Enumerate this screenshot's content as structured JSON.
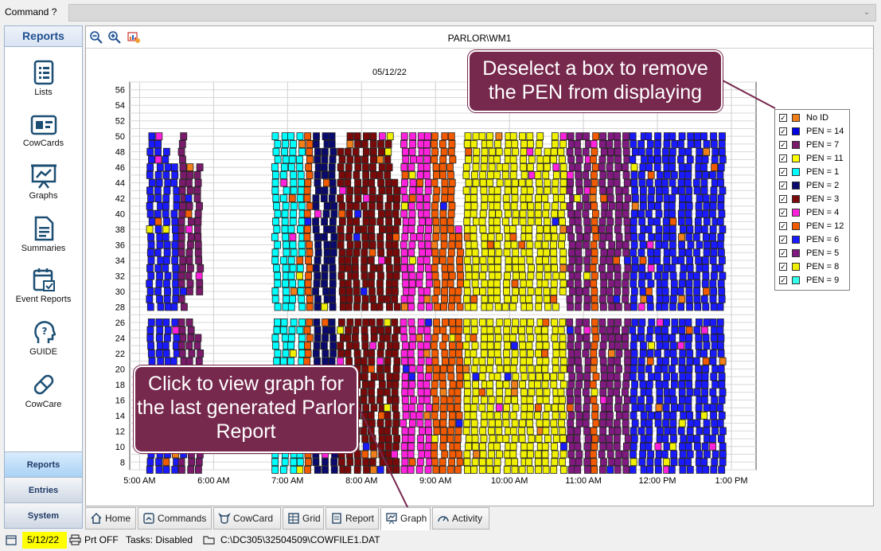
{
  "command_bar": {
    "label": "Command ?",
    "value": ""
  },
  "sidebar": {
    "title": "Reports",
    "items": [
      {
        "label": "Lists",
        "icon": "list-icon"
      },
      {
        "label": "CowCards",
        "icon": "id-card-icon"
      },
      {
        "label": "Graphs",
        "icon": "presentation-chart-icon"
      },
      {
        "label": "Summaries",
        "icon": "document-icon"
      },
      {
        "label": "Event Reports",
        "icon": "calendar-check-icon"
      },
      {
        "label": "GUIDE",
        "icon": "head-question-icon"
      },
      {
        "label": "CowCare",
        "icon": "pill-icon"
      }
    ],
    "bottom_tabs": [
      "Reports",
      "Entries",
      "System"
    ],
    "active_bottom_tab": "Reports"
  },
  "toolbar": {
    "title": "PARLOR\\WM1",
    "icons": [
      "zoom-out-icon",
      "zoom-in-icon",
      "chart-settings-icon"
    ]
  },
  "chart_data": {
    "type": "scatter",
    "title": "05/12/22",
    "x_tick_labels": [
      "5:00 AM",
      "6:00 AM",
      "7:00 AM",
      "8:00 AM",
      "9:00 AM",
      "10:00 AM",
      "11:00 AM",
      "12:00 PM",
      "1:00 PM"
    ],
    "y_tick_labels": [
      8,
      10,
      12,
      14,
      16,
      18,
      20,
      22,
      24,
      26,
      28,
      30,
      32,
      34,
      36,
      38,
      40,
      42,
      44,
      46,
      48,
      50,
      52,
      54,
      56
    ],
    "xlim": [
      "4:52 AM",
      "1:20 PM"
    ],
    "ylim": [
      7,
      57
    ],
    "grid": true,
    "legend_position": "right",
    "x_axis_note": "each column of markers is one milking turn; markers stack from stall 28 to 50 (upper side) and stall 7 to 26 (lower side)",
    "columns": [
      {
        "time": "5:09 AM",
        "pen": "PEN = 6",
        "upper": [
          28,
          50
        ],
        "lower": [
          7,
          26
        ]
      },
      {
        "time": "5:16 AM",
        "pen": "PEN = 6",
        "upper": [
          28,
          50
        ],
        "lower": [
          7,
          26
        ]
      },
      {
        "time": "5:22 AM",
        "pen": "PEN = 6",
        "upper": [
          28,
          48
        ],
        "lower": [
          7,
          26
        ]
      },
      {
        "time": "5:29 AM",
        "pen": "PEN = 6",
        "upper": [
          28,
          46
        ],
        "lower": [
          7,
          26
        ]
      },
      {
        "time": "5:35 AM",
        "pen": "PEN = 7",
        "upper": [
          28,
          50
        ],
        "lower": [
          7,
          26
        ]
      },
      {
        "time": "5:41 AM",
        "pen": "PEN = 7",
        "upper": [
          30,
          46
        ],
        "lower": [
          7,
          26
        ]
      },
      {
        "time": "5:48 AM",
        "pen": "PEN = 7",
        "upper": [
          30,
          46
        ],
        "lower": [
          7,
          24
        ]
      },
      {
        "time": "6:51 AM",
        "pen": "PEN = 1",
        "upper": [
          28,
          50
        ],
        "lower": [
          7,
          26
        ]
      },
      {
        "time": "6:58 AM",
        "pen": "PEN = 1",
        "upper": [
          28,
          50
        ],
        "lower": [
          7,
          26
        ]
      },
      {
        "time": "7:04 AM",
        "pen": "PEN = 1",
        "upper": [
          28,
          50
        ],
        "lower": [
          7,
          26
        ]
      },
      {
        "time": "7:11 AM",
        "pen": "PEN = 1",
        "upper": [
          28,
          50
        ],
        "lower": [
          7,
          26
        ]
      },
      {
        "time": "7:17 AM",
        "pen": "PEN = 12",
        "upper": [
          28,
          50
        ],
        "lower": [
          7,
          26
        ]
      },
      {
        "time": "7:24 AM",
        "pen": "PEN = 2",
        "upper": [
          28,
          50
        ],
        "lower": [
          7,
          26
        ]
      },
      {
        "time": "7:31 AM",
        "pen": "PEN = 2",
        "upper": [
          28,
          50
        ],
        "lower": [
          7,
          26
        ]
      },
      {
        "time": "7:37 AM",
        "pen": "PEN = 2",
        "upper": [
          28,
          50
        ],
        "lower": [
          7,
          26
        ]
      },
      {
        "time": "7:44 AM",
        "pen": "PEN = 3",
        "upper": [
          28,
          48
        ],
        "lower": [
          7,
          26
        ]
      },
      {
        "time": "7:50 AM",
        "pen": "PEN = 3",
        "upper": [
          28,
          50
        ],
        "lower": [
          7,
          26
        ]
      },
      {
        "time": "7:56 AM",
        "pen": "PEN = 3",
        "upper": [
          28,
          50
        ],
        "lower": [
          7,
          26
        ]
      },
      {
        "time": "8:03 AM",
        "pen": "PEN = 3",
        "upper": [
          28,
          50
        ],
        "lower": [
          7,
          26
        ]
      },
      {
        "time": "8:09 AM",
        "pen": "PEN = 3",
        "upper": [
          28,
          50
        ],
        "lower": [
          7,
          26
        ]
      },
      {
        "time": "8:16 AM",
        "pen": "PEN = 3",
        "upper": [
          28,
          50
        ],
        "lower": [
          7,
          26
        ]
      },
      {
        "time": "8:22 AM",
        "pen": "PEN = 3",
        "upper": [
          28,
          50
        ],
        "lower": [
          7,
          26
        ]
      },
      {
        "time": "8:28 AM",
        "pen": "PEN = 3",
        "upper": [
          28,
          44
        ],
        "lower": [
          7,
          26
        ]
      },
      {
        "time": "8:35 AM",
        "pen": "PEN = 4",
        "upper": [
          28,
          50
        ],
        "lower": [
          7,
          26
        ]
      },
      {
        "time": "8:41 AM",
        "pen": "PEN = 4",
        "upper": [
          28,
          50
        ],
        "lower": [
          7,
          26
        ]
      },
      {
        "time": "8:48 AM",
        "pen": "PEN = 4",
        "upper": [
          28,
          50
        ],
        "lower": [
          7,
          26
        ]
      },
      {
        "time": "8:54 AM",
        "pen": "PEN = 4",
        "upper": [
          28,
          50
        ],
        "lower": [
          7,
          26
        ]
      },
      {
        "time": "9:00 AM",
        "pen": "PEN = 12",
        "upper": [
          28,
          50
        ],
        "lower": [
          7,
          26
        ]
      },
      {
        "time": "9:07 AM",
        "pen": "PEN = 12",
        "upper": [
          28,
          50
        ],
        "lower": [
          7,
          26
        ]
      },
      {
        "time": "9:13 AM",
        "pen": "PEN = 12",
        "upper": [
          28,
          50
        ],
        "lower": [
          7,
          26
        ]
      },
      {
        "time": "9:19 AM",
        "pen": "PEN = 12",
        "upper": [
          28,
          38
        ],
        "lower": [
          7,
          26
        ]
      },
      {
        "time": "9:26 AM",
        "pen": "PEN = 8",
        "upper": [
          28,
          50
        ],
        "lower": [
          7,
          26
        ]
      },
      {
        "time": "9:32 AM",
        "pen": "PEN = 8",
        "upper": [
          28,
          50
        ],
        "lower": [
          7,
          26
        ]
      },
      {
        "time": "9:39 AM",
        "pen": "PEN = 8",
        "upper": [
          28,
          50
        ],
        "lower": [
          7,
          26
        ]
      },
      {
        "time": "9:45 AM",
        "pen": "PEN = 8",
        "upper": [
          28,
          50
        ],
        "lower": [
          7,
          26
        ]
      },
      {
        "time": "9:51 AM",
        "pen": "PEN = 8",
        "upper": [
          28,
          50
        ],
        "lower": [
          7,
          26
        ]
      },
      {
        "time": "9:58 AM",
        "pen": "PEN = 8",
        "upper": [
          28,
          50
        ],
        "lower": [
          7,
          26
        ]
      },
      {
        "time": "10:04 AM",
        "pen": "PEN = 8",
        "upper": [
          28,
          50
        ],
        "lower": [
          7,
          26
        ]
      },
      {
        "time": "10:11 AM",
        "pen": "PEN = 8",
        "upper": [
          28,
          50
        ],
        "lower": [
          7,
          26
        ]
      },
      {
        "time": "10:17 AM",
        "pen": "PEN = 8",
        "upper": [
          28,
          50
        ],
        "lower": [
          7,
          26
        ]
      },
      {
        "time": "10:24 AM",
        "pen": "PEN = 8",
        "upper": [
          28,
          50
        ],
        "lower": [
          7,
          26
        ]
      },
      {
        "time": "10:30 AM",
        "pen": "PEN = 8",
        "upper": [
          28,
          48
        ],
        "lower": [
          7,
          26
        ]
      },
      {
        "time": "10:37 AM",
        "pen": "PEN = 8",
        "upper": [
          28,
          50
        ],
        "lower": [
          7,
          26
        ]
      },
      {
        "time": "10:43 AM",
        "pen": "PEN = 8",
        "upper": [
          30,
          50
        ],
        "lower": [
          7,
          26
        ]
      },
      {
        "time": "10:50 AM",
        "pen": "PEN = 5",
        "upper": [
          28,
          50
        ],
        "lower": [
          7,
          26
        ]
      },
      {
        "time": "10:56 AM",
        "pen": "PEN = 5",
        "upper": [
          28,
          50
        ],
        "lower": [
          7,
          26
        ]
      },
      {
        "time": "11:03 AM",
        "pen": "PEN = 5",
        "upper": [
          28,
          50
        ],
        "lower": [
          7,
          26
        ]
      },
      {
        "time": "11:09 AM",
        "pen": "PEN = 12",
        "upper": [
          28,
          50
        ],
        "lower": [
          7,
          26
        ]
      },
      {
        "time": "11:16 AM",
        "pen": "PEN = 5",
        "upper": [
          28,
          50
        ],
        "lower": [
          7,
          26
        ]
      },
      {
        "time": "11:22 AM",
        "pen": "PEN = 5",
        "upper": [
          28,
          50
        ],
        "lower": [
          7,
          26
        ]
      },
      {
        "time": "11:28 AM",
        "pen": "PEN = 5",
        "upper": [
          28,
          50
        ],
        "lower": [
          7,
          26
        ]
      },
      {
        "time": "11:35 AM",
        "pen": "PEN = 5",
        "upper": [
          28,
          50
        ],
        "lower": [
          7,
          26
        ]
      },
      {
        "time": "11:41 AM",
        "pen": "PEN = 6",
        "upper": [
          28,
          50
        ],
        "lower": [
          7,
          26
        ]
      },
      {
        "time": "11:48 AM",
        "pen": "PEN = 6",
        "upper": [
          28,
          50
        ],
        "lower": [
          7,
          26
        ]
      },
      {
        "time": "11:54 AM",
        "pen": "PEN = 6",
        "upper": [
          28,
          50
        ],
        "lower": [
          7,
          26
        ]
      },
      {
        "time": "12:01 PM",
        "pen": "PEN = 6",
        "upper": [
          28,
          50
        ],
        "lower": [
          7,
          26
        ]
      },
      {
        "time": "12:07 PM",
        "pen": "PEN = 6",
        "upper": [
          28,
          50
        ],
        "lower": [
          7,
          26
        ]
      },
      {
        "time": "12:13 PM",
        "pen": "PEN = 6",
        "upper": [
          28,
          50
        ],
        "lower": [
          7,
          26
        ]
      },
      {
        "time": "12:20 PM",
        "pen": "PEN = 6",
        "upper": [
          28,
          50
        ],
        "lower": [
          7,
          26
        ]
      },
      {
        "time": "12:26 PM",
        "pen": "PEN = 6",
        "upper": [
          28,
          50
        ],
        "lower": [
          7,
          26
        ]
      },
      {
        "time": "12:33 PM",
        "pen": "PEN = 6",
        "upper": [
          28,
          50
        ],
        "lower": [
          7,
          26
        ]
      },
      {
        "time": "12:39 PM",
        "pen": "PEN = 6",
        "upper": [
          28,
          50
        ],
        "lower": [
          7,
          26
        ]
      },
      {
        "time": "12:46 PM",
        "pen": "PEN = 6",
        "upper": [
          28,
          50
        ],
        "lower": [
          7,
          26
        ]
      },
      {
        "time": "12:52 PM",
        "pen": "PEN = 6",
        "upper": [
          28,
          50
        ],
        "lower": [
          7,
          26
        ]
      }
    ],
    "series": [
      {
        "name": "No ID",
        "color": "#f07f1a",
        "checked": true
      },
      {
        "name": "PEN = 14",
        "color": "#0000e0",
        "checked": true
      },
      {
        "name": "PEN = 7",
        "color": "#7a1a6a",
        "checked": true
      },
      {
        "name": "PEN = 11",
        "color": "#ffff00",
        "checked": true
      },
      {
        "name": "PEN = 1",
        "color": "#00ffff",
        "checked": true
      },
      {
        "name": "PEN = 2",
        "color": "#0a0a6e",
        "checked": true
      },
      {
        "name": "PEN = 3",
        "color": "#7a0a0a",
        "checked": true
      },
      {
        "name": "PEN = 4",
        "color": "#ff22dd",
        "checked": true
      },
      {
        "name": "PEN = 12",
        "color": "#f25a00",
        "checked": true
      },
      {
        "name": "PEN = 6",
        "color": "#1a1aff",
        "checked": true
      },
      {
        "name": "PEN = 5",
        "color": "#801a80",
        "checked": true
      },
      {
        "name": "PEN = 8",
        "color": "#f0f000",
        "checked": true
      },
      {
        "name": "PEN = 9",
        "color": "#33ffee",
        "checked": true
      }
    ]
  },
  "callouts": {
    "legend": "Deselect a box to remove the PEN from displaying",
    "graph": "Click to view graph for the last generated Parlor Report"
  },
  "bottom_tabs": [
    {
      "label": "Home",
      "icon": "home-icon"
    },
    {
      "label": "Commands",
      "icon": "commands-icon"
    },
    {
      "label": "CowCard",
      "icon": "cow-icon"
    },
    {
      "label": "Grid",
      "icon": "grid-icon"
    },
    {
      "label": "Report",
      "icon": "report-icon"
    },
    {
      "label": "Graph",
      "icon": "graph-icon",
      "active": true
    },
    {
      "label": "Activity",
      "icon": "gauge-icon"
    }
  ],
  "status_bar": {
    "date": "5/12/22",
    "print": "Prt OFF",
    "tasks": "Tasks: Disabled",
    "path": "C:\\DC305\\32504509\\COWFILE1.DAT"
  },
  "colors": {
    "callout_bg": "#76284d",
    "date_highlight": "#ffff00",
    "sidebar_active_tab": "#a9d1f5"
  }
}
